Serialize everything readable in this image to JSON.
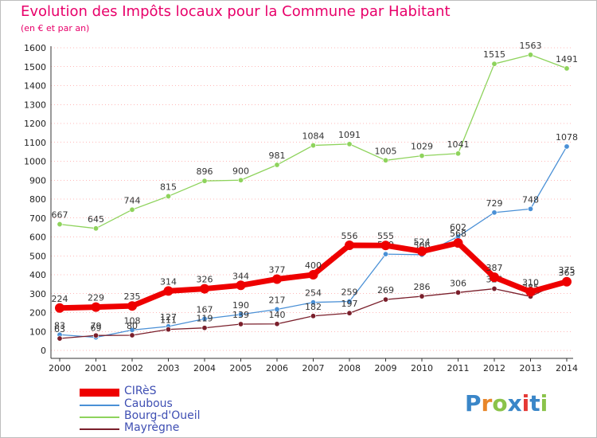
{
  "header": {
    "title": "Evolution des Impôts locaux pour la Commune par Habitant",
    "subtitle": "(en € et par an)"
  },
  "logo": {
    "text": "Proxiti",
    "colors": [
      "#3a86c8",
      "#e8862a",
      "#8bc34a",
      "#3a86c8",
      "#e53935",
      "#3a86c8",
      "#8bc34a"
    ]
  },
  "colors": {
    "title": "#e8006a",
    "legend_text": "#3f4fb3",
    "grid": "#ff0000"
  },
  "chart_data": {
    "type": "line",
    "title": "Evolution des Impôts locaux pour la Commune par Habitant",
    "subtitle": "(en € et par an)",
    "xlabel": "",
    "ylabel": "",
    "ylim": [
      0,
      1600
    ],
    "yticks": [
      0,
      100,
      200,
      300,
      400,
      500,
      600,
      700,
      800,
      900,
      1000,
      1100,
      1200,
      1300,
      1400,
      1500,
      1600
    ],
    "categories": [
      "2000",
      "2001",
      "2002",
      "2003",
      "2004",
      "2005",
      "2006",
      "2007",
      "2008",
      "2009",
      "2010",
      "2011",
      "2012",
      "2013",
      "2014"
    ],
    "grid": "horizontal dotted",
    "legend_position": "bottom-left",
    "series": [
      {
        "name": "Bourg-d'Oueil",
        "color": "#8ed35c",
        "values": [
          667,
          645,
          744,
          815,
          896,
          900,
          981,
          1084,
          1091,
          1005,
          1029,
          1041,
          1515,
          1563,
          1491
        ],
        "labels": [
          "667",
          "645",
          "744",
          "815",
          "896",
          "900",
          "981",
          "1084",
          "1091",
          "1005",
          "1029",
          "1041",
          "1515",
          "1563",
          "1491"
        ]
      },
      {
        "name": "Caubous",
        "color": "#4a90d6",
        "values": [
          83,
          69,
          108,
          127,
          167,
          190,
          217,
          254,
          259,
          509,
          506,
          602,
          729,
          748,
          1078
        ],
        "labels": [
          "83",
          "69",
          "108",
          "127",
          "167",
          "190",
          "217",
          "254",
          "259",
          "509",
          "506",
          "602",
          "729",
          "748",
          "1078"
        ]
      },
      {
        "name": "Mayrègne",
        "color": "#7a1f2b",
        "values": [
          63,
          79,
          80,
          111,
          119,
          139,
          140,
          182,
          197,
          269,
          286,
          306,
          326,
          285,
          375
        ],
        "labels": [
          "63",
          "79",
          "80",
          "111",
          "119",
          "139",
          "140",
          "182",
          "197",
          "269",
          "286",
          "306",
          "326",
          "285",
          "375"
        ]
      },
      {
        "name": "CIRèS",
        "color": "#ee0000",
        "values": [
          224,
          229,
          235,
          314,
          326,
          344,
          377,
          400,
          556,
          555,
          524,
          568,
          387,
          310,
          363
        ],
        "labels": [
          "224",
          "229",
          "235",
          "314",
          "326",
          "344",
          "377",
          "400",
          "556",
          "555",
          "524",
          "568",
          "387",
          "310",
          "363"
        ]
      }
    ]
  }
}
